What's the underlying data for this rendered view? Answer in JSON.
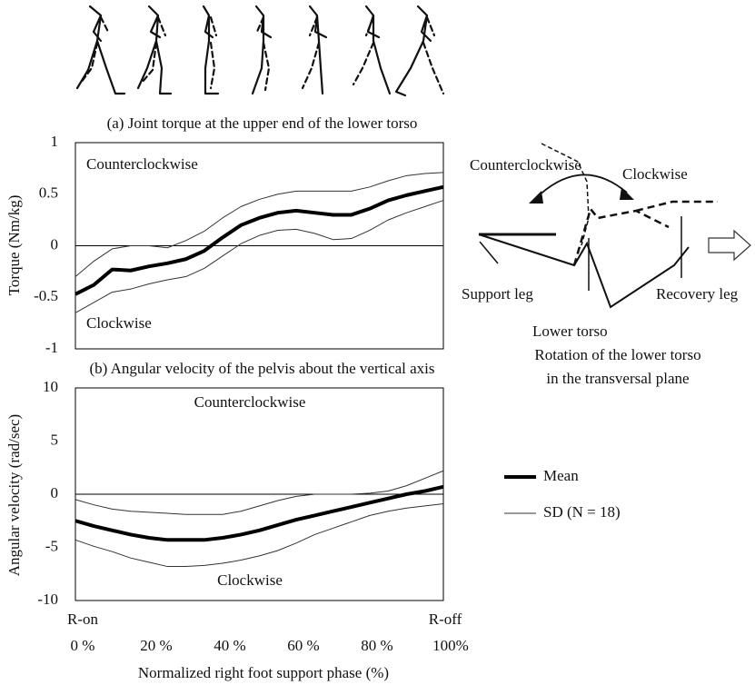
{
  "chart_data": [
    {
      "type": "line",
      "title": "(a) Joint torque at the upper end of the lower torso",
      "y_label": "Torque (Nm/kg)",
      "annotations": [
        "Counterclockwise",
        "Clockwise"
      ],
      "x": [
        0,
        5,
        10,
        15,
        20,
        25,
        30,
        35,
        40,
        45,
        50,
        55,
        60,
        65,
        70,
        75,
        80,
        85,
        90,
        95,
        100
      ],
      "xlim": [
        0,
        100
      ],
      "ylim": [
        -1,
        1
      ],
      "yticks": [
        -1,
        -0.5,
        0,
        0.5,
        1
      ],
      "series": [
        {
          "color": "#000000",
          "values": [
            -0.47,
            -0.38,
            -0.23,
            -0.24,
            -0.2,
            -0.17,
            -0.13,
            -0.05,
            0.08,
            0.2,
            0.27,
            0.32,
            0.34,
            0.32,
            0.3,
            0.3,
            0.36,
            0.44,
            0.49,
            0.53,
            0.57
          ]
        },
        {
          "color": "#333333",
          "upper": [
            -0.3,
            -0.15,
            -0.03,
            0,
            0,
            -0.02,
            0.05,
            0.14,
            0.27,
            0.38,
            0.45,
            0.5,
            0.53,
            0.53,
            0.53,
            0.53,
            0.57,
            0.63,
            0.68,
            0.7,
            0.71
          ],
          "lower": [
            -0.65,
            -0.55,
            -0.45,
            -0.42,
            -0.37,
            -0.33,
            -0.3,
            -0.22,
            -0.1,
            0.02,
            0.1,
            0.15,
            0.16,
            0.12,
            0.06,
            0.07,
            0.15,
            0.25,
            0.32,
            0.38,
            0.44
          ]
        }
      ]
    },
    {
      "type": "line",
      "title": "(b) Angular velocity of the pelvis about the vertical axis",
      "y_label": "Angular velocity (rad/sec)",
      "x_label": "Normalized right foot support phase (%)",
      "x_end_labels": [
        "R-on",
        "R-off"
      ],
      "annotations": [
        "Counterclockwise",
        "Clockwise"
      ],
      "x": [
        0,
        5,
        10,
        15,
        20,
        25,
        30,
        35,
        40,
        45,
        50,
        55,
        60,
        65,
        70,
        75,
        80,
        85,
        90,
        95,
        100
      ],
      "xlim": [
        0,
        100
      ],
      "xticks": [
        {
          "value": 0,
          "label": "0 %"
        },
        {
          "value": 20,
          "label": "20 %"
        },
        {
          "value": 40,
          "label": "40 %"
        },
        {
          "value": 60,
          "label": "60 %"
        },
        {
          "value": 80,
          "label": "80 %"
        },
        {
          "value": 100,
          "label": "100%"
        }
      ],
      "ylim": [
        -10,
        10
      ],
      "yticks": [
        -10,
        -5,
        0,
        5,
        10
      ],
      "series": [
        {
          "name": "Mean",
          "color": "#000000",
          "values": [
            -2.5,
            -3,
            -3.4,
            -3.8,
            -4.1,
            -4.3,
            -4.3,
            -4.3,
            -4.1,
            -3.8,
            -3.4,
            -2.9,
            -2.4,
            -2,
            -1.6,
            -1.2,
            -0.8,
            -0.4,
            0,
            0.3,
            0.7
          ]
        },
        {
          "name": "SD (N = 18)",
          "color": "#333333",
          "upper": [
            -0.5,
            -1,
            -1.4,
            -1.6,
            -1.7,
            -1.8,
            -1.9,
            -1.9,
            -1.9,
            -1.6,
            -1.1,
            -0.6,
            -0.2,
            0,
            0,
            0,
            0.1,
            0.3,
            0.8,
            1.5,
            2.2
          ],
          "lower": [
            -4.3,
            -4.9,
            -5.4,
            -6,
            -6.4,
            -6.8,
            -6.8,
            -6.7,
            -6.5,
            -6.2,
            -5.8,
            -5.3,
            -4.6,
            -3.8,
            -3.2,
            -2.6,
            -2,
            -1.6,
            -1.3,
            -1.1,
            -0.9
          ]
        }
      ]
    }
  ],
  "diagram": {
    "labels": [
      "Counterclockwise",
      "Clockwise",
      "Support leg",
      "Lower torso",
      "Recovery leg",
      "Rotation of the lower torso",
      "in the transversal plane"
    ]
  }
}
